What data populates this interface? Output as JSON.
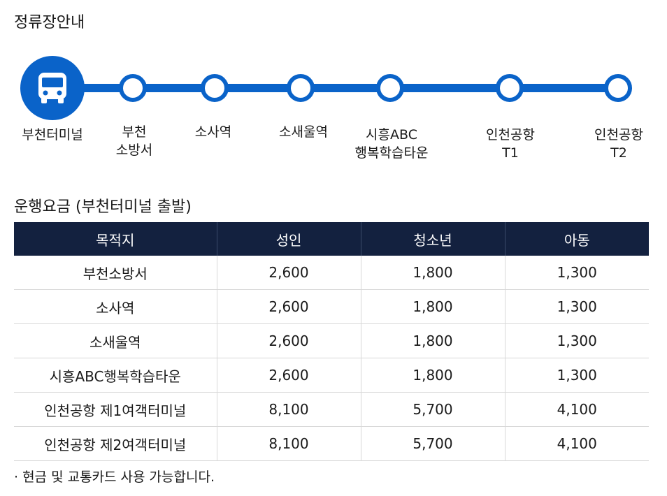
{
  "stops_title": "정류장안내",
  "stops": [
    {
      "lines": [
        "부천터미널"
      ]
    },
    {
      "lines": [
        "부천",
        "소방서"
      ]
    },
    {
      "lines": [
        "소사역"
      ]
    },
    {
      "lines": [
        "소새울역"
      ]
    },
    {
      "lines": [
        "시흥ABC",
        "행복학습타운"
      ]
    },
    {
      "lines": [
        "인천공항",
        "T1"
      ]
    },
    {
      "lines": [
        "인천공항",
        "T2"
      ]
    }
  ],
  "route_color": "#0a63c9",
  "fare_title": "운행요금 (부천터미널 출발)",
  "table": {
    "headers": [
      "목적지",
      "성인",
      "청소년",
      "아동"
    ],
    "rows": [
      [
        "부천소방서",
        "2,600",
        "1,800",
        "1,300"
      ],
      [
        "소사역",
        "2,600",
        "1,800",
        "1,300"
      ],
      [
        "소새울역",
        "2,600",
        "1,800",
        "1,300"
      ],
      [
        "시흥ABC행복학습타운",
        "2,600",
        "1,800",
        "1,300"
      ],
      [
        "인천공항 제1여객터미널",
        "8,100",
        "5,700",
        "4,100"
      ],
      [
        "인천공항 제2여객터미널",
        "8,100",
        "5,700",
        "4,100"
      ]
    ]
  },
  "note": "· 현금 및 교통카드 사용 가능합니다.",
  "header_color": "#13213f"
}
